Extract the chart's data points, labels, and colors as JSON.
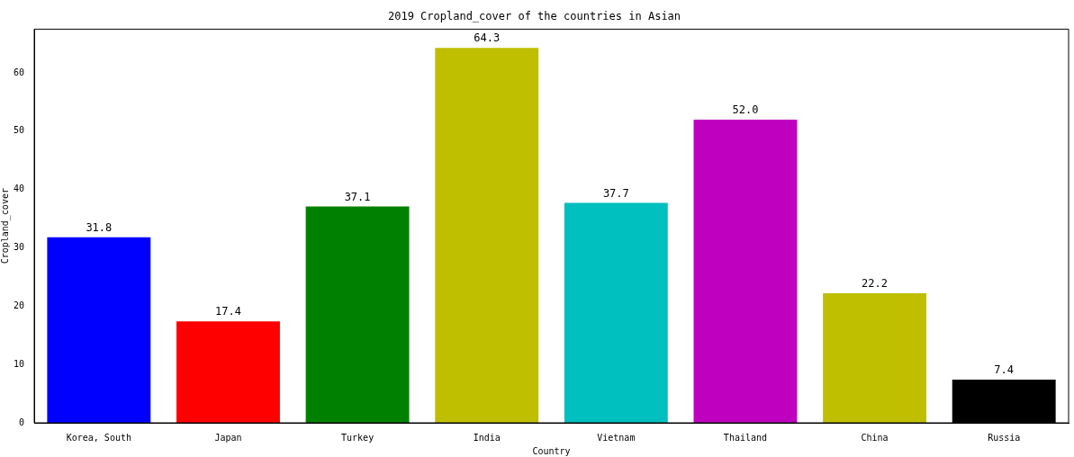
{
  "chart_data": {
    "type": "bar",
    "title": "2019 Cropland_cover of the countries in Asian",
    "xlabel": "Country",
    "ylabel": "Cropland_cover",
    "categories": [
      "Korea, South",
      "Japan",
      "Turkey",
      "India",
      "Vietnam",
      "Thailand",
      "China",
      "Russia"
    ],
    "values": [
      31.8,
      17.4,
      37.1,
      64.3,
      37.7,
      52.0,
      22.2,
      7.4
    ],
    "colors": [
      "#0000ff",
      "#ff0000",
      "#008000",
      "#bfbf00",
      "#00bfbf",
      "#bf00bf",
      "#bfbf00",
      "#000000"
    ],
    "value_labels": [
      "31.8",
      "17.4",
      "37.1",
      "64.3",
      "37.7",
      "52.0",
      "22.2",
      "7.4"
    ],
    "ylim": [
      0,
      67.5
    ],
    "yticks": [
      0,
      10,
      20,
      30,
      40,
      50,
      60
    ],
    "grid": false,
    "legend": false
  }
}
